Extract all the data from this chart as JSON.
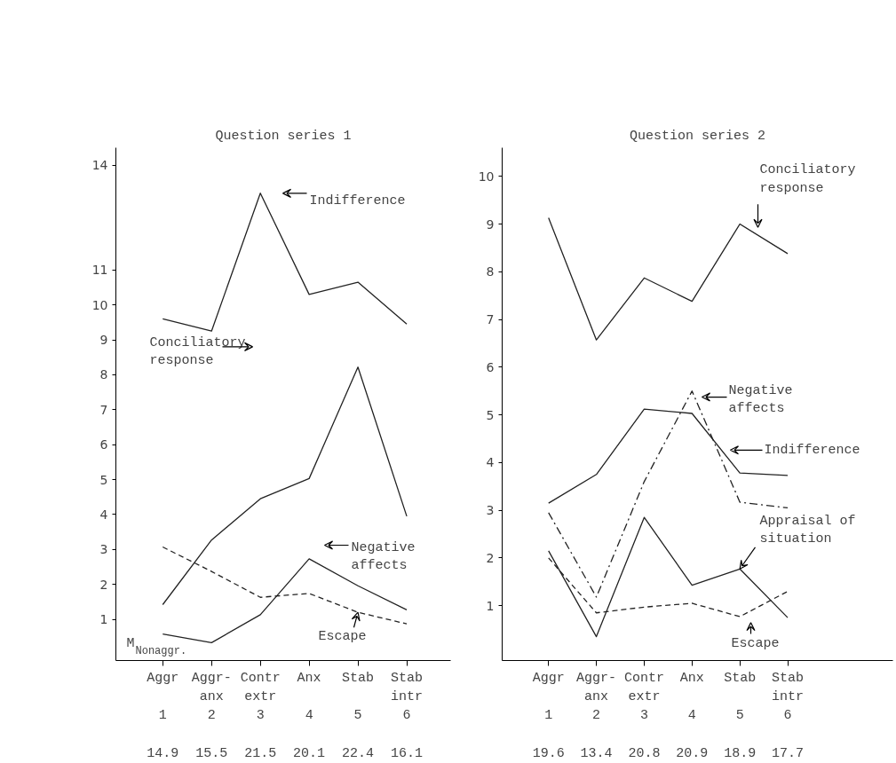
{
  "chart_data": [
    {
      "type": "line",
      "title": "Question series 1",
      "categories": [
        "Aggr\n\n1",
        "Aggr-\nanx\n2",
        "Contr\nextr\n3",
        "Anx\n\n4",
        "Stab\n\n5",
        "Stab\nintr\n6"
      ],
      "series": [
        {
          "color": "#222222",
          "values": [
            9.6,
            9.25,
            13.2,
            10.3,
            10.65,
            9.45
          ]
        },
        {
          "color": "#222222",
          "values": [
            1.42,
            3.27,
            4.45,
            5.03,
            8.22,
            3.95
          ]
        },
        {
          "color": "#222222",
          "values": [
            0.58,
            0.33,
            1.13,
            2.73,
            1.96,
            1.27
          ]
        },
        {
          "color": "#222222",
          "values": [
            3.07,
            2.37,
            1.63,
            1.74,
            1.2,
            0.87
          ],
          "line_style": "dashed"
        }
      ],
      "ylim": [
        -0.18,
        14.5
      ],
      "yticks": [
        1,
        2,
        3,
        4,
        5,
        6,
        7,
        8,
        9,
        10,
        11,
        14
      ],
      "annotations": [
        "Indifference",
        "Conciliatory\nresponse",
        "Negative\naffects",
        {
          "text": "Escape",
          "x": "Stab\n\n5",
          "y": 1.2
        },
        "M$_{Nonaggr.}$",
        "14.9",
        "15.5",
        "21.5",
        "20.1",
        "22.4",
        "16.1"
      ],
      "grid": false,
      "marker": "none"
    },
    {
      "type": "line",
      "title": "Question series 2",
      "categories": [
        "Aggr\n\n1",
        "Aggr-\nanx\n2",
        "Contr\nextr\n3",
        "Anx\n\n4",
        "Stab\n\n5",
        "Stab\nintr\n6"
      ],
      "series": [
        {
          "color": "#222222",
          "values": [
            9.13,
            6.57,
            7.87,
            7.38,
            9.0,
            8.38
          ]
        },
        {
          "color": "#222222",
          "values": [
            2.95,
            1.18,
            3.6,
            5.5,
            3.17,
            3.05
          ],
          "line_style": "dashdot"
        },
        {
          "color": "#222222",
          "values": [
            3.15,
            3.75,
            5.12,
            5.03,
            3.78,
            3.73
          ]
        },
        {
          "color": "#222222",
          "values": [
            2.15,
            0.35,
            2.85,
            1.43,
            1.77,
            0.75
          ]
        },
        {
          "color": "#222222",
          "values": [
            2.0,
            0.85,
            0.97,
            1.05,
            0.77,
            1.3
          ],
          "line_style": "dashed"
        }
      ],
      "ylim": [
        -0.15,
        10.6
      ],
      "yticks": [
        1,
        2,
        3,
        4,
        5,
        6,
        7,
        8,
        9,
        10
      ],
      "annotations": [
        "Conciliatory\nresponse",
        "Negative\naffects",
        "Indifference",
        {
          "text": "Appraisal of\nsituation",
          "x": "Stab\n\n5",
          "y": 1.77
        },
        "Escape",
        "19.6",
        "13.4",
        "20.8",
        "20.9",
        "18.9",
        "17.7"
      ],
      "grid": false,
      "marker": "none"
    }
  ]
}
